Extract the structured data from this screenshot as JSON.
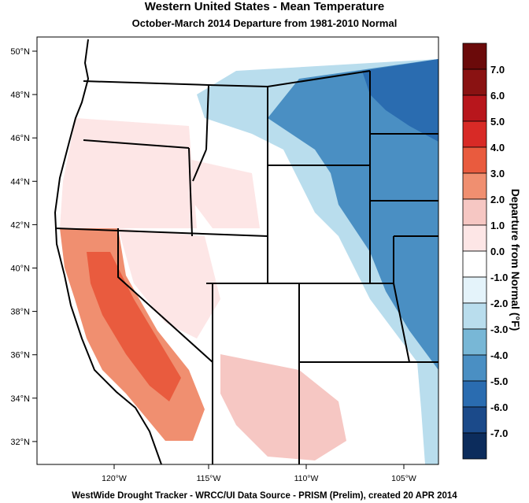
{
  "title": "Western United States - Mean Temperature",
  "subtitle": "October-March 2014  Departure from 1981-2010 Normal",
  "footer": "WestWide Drought Tracker - WRCC/UI  Data Source - PRISM (Prelim), created 20 APR 2014",
  "map": {
    "lat_labels": [
      "50°N",
      "48°N",
      "46°N",
      "44°N",
      "42°N",
      "40°N",
      "38°N",
      "36°N",
      "34°N",
      "32°N"
    ],
    "lon_labels": [
      "120°W",
      "115°W",
      "110°W",
      "105°W"
    ]
  },
  "colorbar": {
    "title": "Departure from Normal (°F)",
    "levels": [
      "7.0",
      "6.0",
      "5.0",
      "4.0",
      "3.0",
      "2.0",
      "1.0",
      "0.0",
      "-1.0",
      "-2.0",
      "-3.0",
      "-4.0",
      "-5.0",
      "-6.0",
      "-7.0"
    ],
    "colors": [
      "#6b0a0a",
      "#8a1212",
      "#b8161c",
      "#d82a26",
      "#e95b3e",
      "#f08f70",
      "#f6c7c3",
      "#fde6e6",
      "#ffffff",
      "#e4f3fa",
      "#b9dded",
      "#78b7d6",
      "#4a8fc3",
      "#2a6cb0",
      "#1b4a8a",
      "#0c2c5c"
    ]
  },
  "legend_colors": {
    "ocean": "#ffffff",
    "border": "#000000"
  }
}
